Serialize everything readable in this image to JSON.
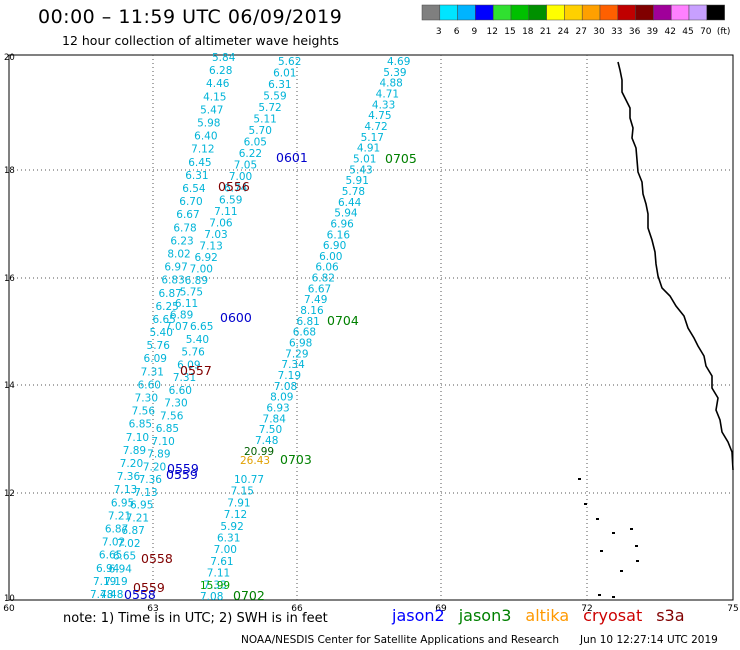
{
  "header": {
    "title": "00:00 – 11:59 UTC 06/09/2019",
    "subtitle": "12 hour collection of altimeter wave heights"
  },
  "colorbar": {
    "colors": [
      "#7f7f7f",
      "#00e5ff",
      "#00b4ff",
      "#0000ff",
      "#30e030",
      "#00c000",
      "#009000",
      "#ffff00",
      "#ffd000",
      "#ffa000",
      "#ff6000",
      "#c00000",
      "#800000",
      "#a0009a",
      "#ff80ff",
      "#c8a0ff",
      "#000000"
    ],
    "labels": [
      "3",
      "6",
      "9",
      "12",
      "15",
      "18",
      "21",
      "24",
      "27",
      "30",
      "33",
      "36",
      "39",
      "42",
      "45",
      "70",
      "(ft)"
    ]
  },
  "axes": {
    "x_ticks": [
      "60",
      "63",
      "66",
      "69",
      "72",
      "75"
    ],
    "y_ticks": [
      "20",
      "18",
      "16",
      "14",
      "12",
      "10"
    ]
  },
  "passes": {
    "p1": [
      "5.84",
      "6.28",
      "4.46",
      "4.15",
      "5.47",
      "5.98",
      "6.40",
      "7.12",
      "6.45",
      "6.31",
      "6.54",
      "6.70",
      "6.67",
      "6.78",
      "6.23",
      "8.02",
      "6.97",
      "6.83",
      "6.87",
      "6.25",
      "6.65",
      "5.40",
      "5.76",
      "6.09",
      "7.31",
      "6.60",
      "7.30",
      "7.56",
      "6.85",
      "7.10",
      "7.89",
      "7.20",
      "7.36",
      "7.13",
      "6.95",
      "7.21",
      "6.87",
      "7.02",
      "6.65",
      "6.94",
      "7.19",
      "7.48"
    ],
    "p2": [
      "5.62",
      "6.01",
      "6.31",
      "5.59",
      "5.72",
      "5.11",
      "5.70",
      "6.05",
      "6.22",
      "7.05",
      "7.00",
      "6.74",
      "6.59",
      "7.11",
      "7.06",
      "7.03",
      "7.13",
      "6.92",
      "7.00",
      "6.89",
      "5.75",
      "6.11",
      "6.89",
      "7.07"
    ],
    "p3": [
      "4.69",
      "5.39",
      "4.88",
      "4.71",
      "4.33",
      "4.75",
      "4.72",
      "5.17",
      "4.91",
      "5.01",
      "5.43",
      "5.91",
      "5.78",
      "6.44",
      "5.94",
      "6.96",
      "6.16",
      "6.90",
      "6.00",
      "6.06",
      "6.82",
      "6.67",
      "7.49",
      "8.16",
      "6.81",
      "6.68",
      "6.98",
      "7.29",
      "7.34",
      "7.19",
      "7.08",
      "8.09",
      "6.93",
      "7.84",
      "7.50",
      "7.48"
    ],
    "p4": [
      "10.77",
      "7.15",
      "7.91",
      "7.12",
      "5.92",
      "6.31",
      "7.00",
      "7.61",
      "7.11",
      "7.33",
      "7.08"
    ],
    "special": [
      {
        "text": "20.99",
        "color": "#006000"
      },
      {
        "text": "26.43",
        "color": "#e0a000"
      },
      {
        "text": "15.99",
        "color": "#00a000"
      }
    ]
  },
  "pass_labels": [
    {
      "text": "0601",
      "color": "#0000cc"
    },
    {
      "text": "0705",
      "color": "#008000"
    },
    {
      "text": "0556",
      "color": "#800000"
    },
    {
      "text": "0600",
      "color": "#0000cc"
    },
    {
      "text": "0704",
      "color": "#008000"
    },
    {
      "text": "0557",
      "color": "#800000"
    },
    {
      "text": "0559",
      "color": "#0000cc"
    },
    {
      "text": "0559",
      "color": "#0000cc"
    },
    {
      "text": "0703",
      "color": "#008000"
    },
    {
      "text": "0558",
      "color": "#800000"
    },
    {
      "text": "0559",
      "color": "#800000"
    },
    {
      "text": "0558",
      "color": "#0000cc"
    },
    {
      "text": "0702",
      "color": "#008000"
    }
  ],
  "footer": {
    "note": "note: 1) Time is in UTC; 2) SWH is in feet",
    "satellites": [
      {
        "name": "jason2",
        "color": "#0000ff"
      },
      {
        "name": "jason3",
        "color": "#008000"
      },
      {
        "name": "altika",
        "color": "#ff9900"
      },
      {
        "name": "cryosat",
        "color": "#cc0000"
      },
      {
        "name": "s3a",
        "color": "#800000"
      }
    ],
    "credit": "NOAA/NESDIS Center for Satellite Applications and Research",
    "timestamp": "Jun 10 12:27:14 UTC 2019"
  }
}
